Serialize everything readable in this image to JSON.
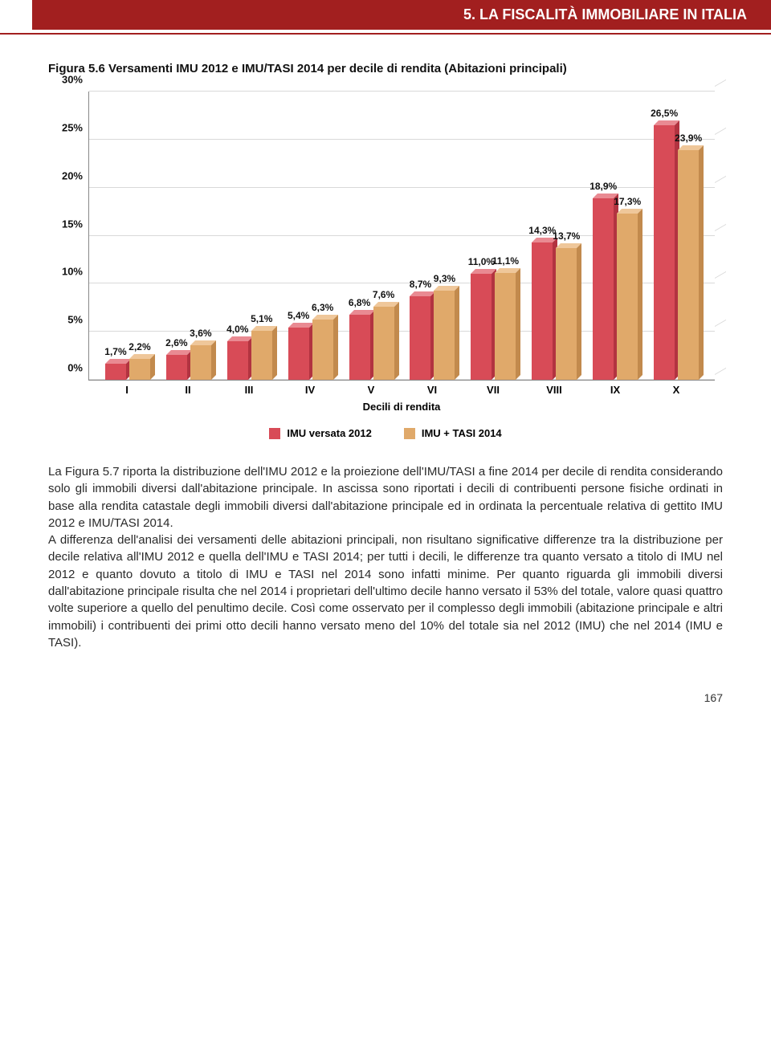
{
  "header": {
    "title": "5. LA FISCALITÀ IMMOBILIARE IN ITALIA",
    "bg_color": "#a21f1f"
  },
  "figure": {
    "title": "Figura 5.6 Versamenti IMU 2012 e IMU/TASI 2014 per decile di rendita (Abitazioni principali)",
    "chart": {
      "type": "bar",
      "ymax": 30,
      "ytick_step": 5,
      "ytick_labels": [
        "0%",
        "5%",
        "10%",
        "15%",
        "20%",
        "25%",
        "30%"
      ],
      "x_axis_title": "Decili di rendita",
      "categories": [
        "I",
        "II",
        "III",
        "IV",
        "V",
        "VI",
        "VII",
        "VIII",
        "IX",
        "X"
      ],
      "series": [
        {
          "name": "IMU versata 2012",
          "color_front": "#d84b57",
          "color_top": "#e98a92",
          "color_side": "#b23340",
          "values": [
            1.7,
            2.6,
            4.0,
            5.4,
            6.8,
            8.7,
            11.0,
            14.3,
            18.9,
            26.5
          ],
          "labels": [
            "1,7%",
            "2,6%",
            "4,0%",
            "5,4%",
            "6,8%",
            "8,7%",
            "11,0%",
            "14,3%",
            "18,9%",
            "26,5%"
          ]
        },
        {
          "name": "IMU + TASI 2014",
          "color_front": "#e0a96a",
          "color_top": "#efc79a",
          "color_side": "#c28a4d",
          "values": [
            2.2,
            3.6,
            5.1,
            6.3,
            7.6,
            9.3,
            11.1,
            13.7,
            17.3,
            23.9
          ],
          "labels": [
            "2,2%",
            "3,6%",
            "5,1%",
            "6,3%",
            "7,6%",
            "9,3%",
            "11,1%",
            "13,7%",
            "17,3%",
            "23,9%"
          ]
        }
      ],
      "grid_color": "#d9d9d9",
      "background_color": "#ffffff"
    },
    "legend": [
      {
        "label": "IMU  versata 2012",
        "swatch": "#d84b57"
      },
      {
        "label": "IMU + TASI 2014",
        "swatch": "#e0a96a"
      }
    ]
  },
  "body": {
    "p1": "La Figura 5.7 riporta la distribuzione dell'IMU 2012 e la proiezione dell'IMU/TASI a fine 2014 per decile di rendita considerando solo gli immobili diversi dall'abitazione principale. In ascissa sono riportati i decili di contribuenti persone fisiche ordinati in base alla rendita catastale degli immobili diversi dall'abitazione principale ed in ordinata la percentuale relativa di gettito IMU 2012 e IMU/TASI 2014.",
    "p2": "A differenza dell'analisi dei versamenti delle abitazioni principali, non risultano significative differenze tra la distribuzione per decile relativa all'IMU 2012 e quella dell'IMU e TASI 2014; per tutti i decili, le differenze tra quanto versato a titolo di IMU nel 2012 e quanto dovuto a titolo di IMU e TASI nel 2014 sono infatti minime. Per quanto riguarda gli immobili diversi dall'abitazione principale risulta che nel 2014 i proprietari dell'ultimo decile hanno versato il 53% del totale, valore quasi quattro volte superiore a quello del penultimo decile. Così come osservato per il complesso degli immobili (abitazione principale e altri immobili) i contribuenti dei primi otto decili hanno versato meno del 10% del totale sia nel 2012 (IMU) che nel 2014 (IMU e TASI)."
  },
  "page_number": "167"
}
